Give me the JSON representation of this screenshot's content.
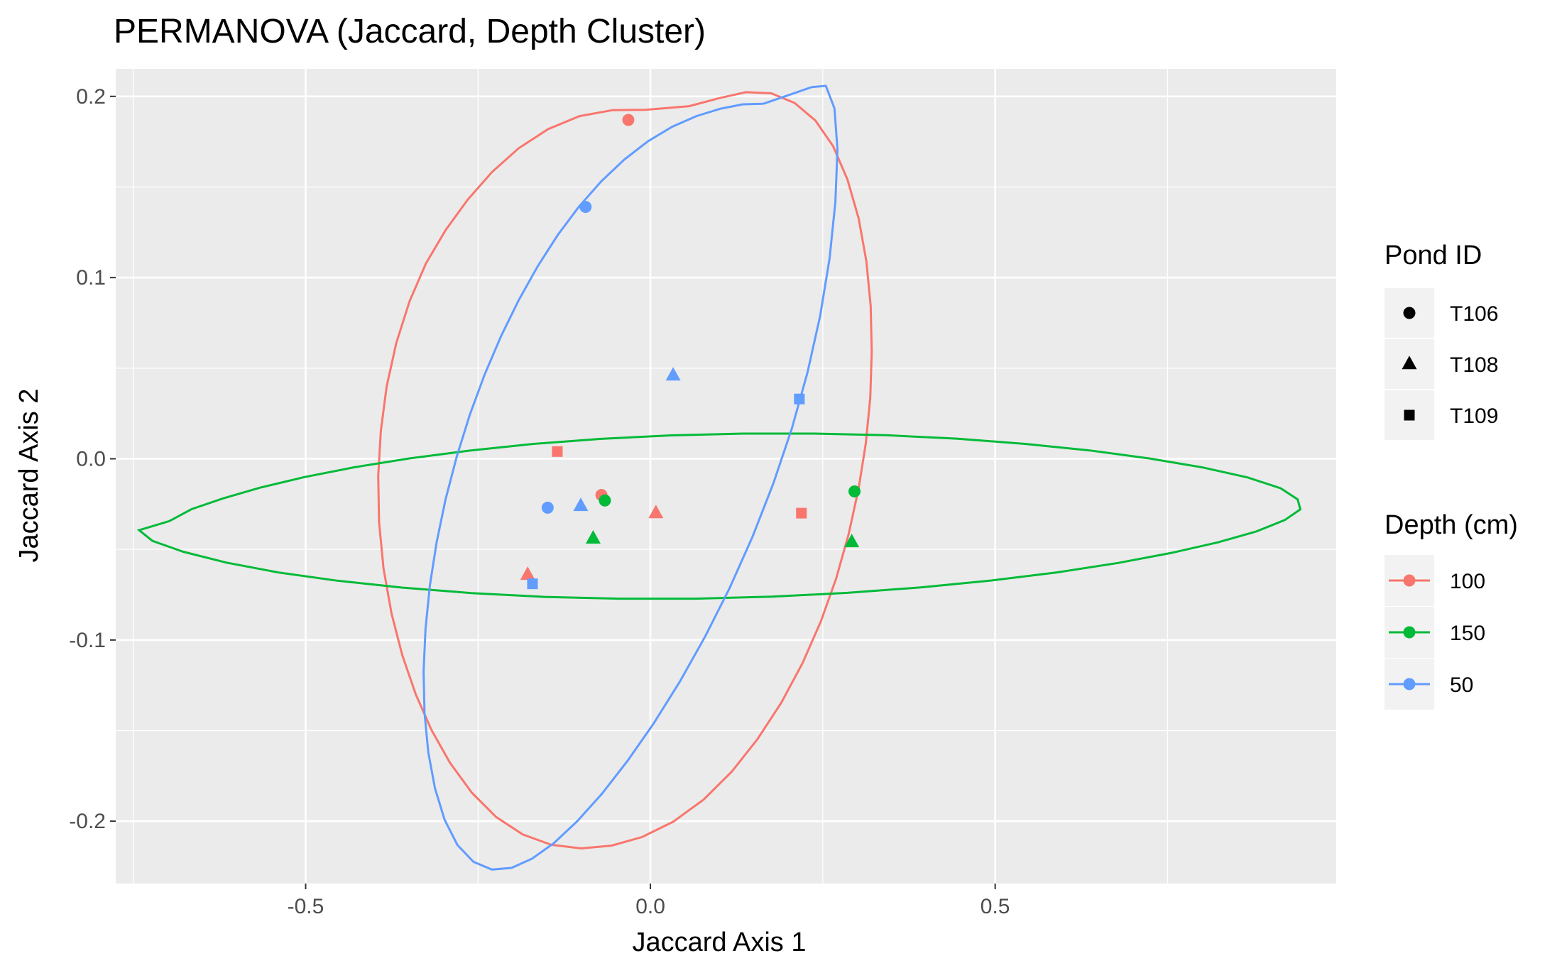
{
  "chart_data": {
    "type": "scatter",
    "title": "PERMANOVA (Jaccard, Depth Cluster)",
    "xlabel": "Jaccard Axis 1",
    "ylabel": "Jaccard Axis 2",
    "xlim": [
      -0.7754,
      0.9946
    ],
    "ylim": [
      -0.2344,
      0.2152
    ],
    "x_ticks": [
      -0.5,
      0.0,
      0.5
    ],
    "x_tick_labels": [
      "-0.5",
      "0.0",
      "0.5"
    ],
    "y_ticks": [
      -0.2,
      -0.1,
      0.0,
      0.1,
      0.2
    ],
    "y_tick_labels": [
      "-0.2",
      "-0.1",
      "0.0",
      "0.1",
      "0.2"
    ],
    "grid": true,
    "legend_placement": "right",
    "legends": {
      "shape": {
        "title": "Pond ID",
        "entries": [
          {
            "label": "T106",
            "shape": "circle"
          },
          {
            "label": "T108",
            "shape": "triangle"
          },
          {
            "label": "T109",
            "shape": "square"
          }
        ]
      },
      "color": {
        "title": "Depth (cm)",
        "entries": [
          {
            "label": "100",
            "color": "#F8766D"
          },
          {
            "label": "150",
            "color": "#00BA38"
          },
          {
            "label": "50",
            "color": "#619CFF"
          }
        ]
      }
    },
    "points": [
      {
        "x": -0.032,
        "y": 0.187,
        "depth": "100",
        "pond": "T106"
      },
      {
        "x": -0.071,
        "y": -0.02,
        "depth": "100",
        "pond": "T106"
      },
      {
        "x": 0.008,
        "y": -0.03,
        "depth": "100",
        "pond": "T108"
      },
      {
        "x": -0.178,
        "y": -0.064,
        "depth": "100",
        "pond": "T108"
      },
      {
        "x": -0.135,
        "y": 0.004,
        "depth": "100",
        "pond": "T109"
      },
      {
        "x": 0.219,
        "y": -0.03,
        "depth": "100",
        "pond": "T109"
      },
      {
        "x": -0.066,
        "y": -0.023,
        "depth": "150",
        "pond": "T106"
      },
      {
        "x": 0.296,
        "y": -0.018,
        "depth": "150",
        "pond": "T106"
      },
      {
        "x": -0.083,
        "y": -0.044,
        "depth": "150",
        "pond": "T108"
      },
      {
        "x": 0.292,
        "y": -0.046,
        "depth": "150",
        "pond": "T108"
      },
      {
        "x": -0.094,
        "y": 0.139,
        "depth": "50",
        "pond": "T106"
      },
      {
        "x": -0.149,
        "y": -0.027,
        "depth": "50",
        "pond": "T106"
      },
      {
        "x": -0.101,
        "y": -0.026,
        "depth": "50",
        "pond": "T108"
      },
      {
        "x": 0.033,
        "y": 0.046,
        "depth": "50",
        "pond": "T108"
      },
      {
        "x": -0.171,
        "y": -0.069,
        "depth": "50",
        "pond": "T109"
      },
      {
        "x": 0.216,
        "y": 0.033,
        "depth": "50",
        "pond": "T109"
      }
    ],
    "ellipses": [
      {
        "depth": "100",
        "color": "#F8766D",
        "path": [
          [
            -0.0074,
            0.1926
          ],
          [
            -0.0547,
            0.1924
          ],
          [
            -0.1027,
            0.1891
          ],
          [
            -0.1484,
            0.1819
          ],
          [
            -0.1909,
            0.1714
          ],
          [
            -0.2296,
            0.1583
          ],
          [
            -0.265,
            0.143
          ],
          [
            -0.297,
            0.1262
          ],
          [
            -0.3254,
            0.1079
          ],
          [
            -0.3491,
            0.0871
          ],
          [
            -0.3685,
            0.064
          ],
          [
            -0.3825,
            0.04
          ],
          [
            -0.3909,
            0.0154
          ],
          [
            -0.3947,
            -0.0094
          ],
          [
            -0.3935,
            -0.035
          ],
          [
            -0.387,
            -0.0606
          ],
          [
            -0.3755,
            -0.0853
          ],
          [
            -0.3598,
            -0.1084
          ],
          [
            -0.3404,
            -0.1299
          ],
          [
            -0.3177,
            -0.1495
          ],
          [
            -0.2906,
            -0.1678
          ],
          [
            -0.2589,
            -0.1843
          ],
          [
            -0.2237,
            -0.1977
          ],
          [
            -0.1853,
            -0.2073
          ],
          [
            -0.1439,
            -0.213
          ],
          [
            -0.1005,
            -0.215
          ],
          [
            -0.0564,
            -0.2135
          ],
          [
            -0.0118,
            -0.2087
          ],
          [
            0.0331,
            -0.2003
          ],
          [
            0.0771,
            -0.1881
          ],
          [
            0.1178,
            -0.1727
          ],
          [
            0.1553,
            -0.1547
          ],
          [
            0.1898,
            -0.1346
          ],
          [
            0.2206,
            -0.1128
          ],
          [
            0.2473,
            -0.0897
          ],
          [
            0.2695,
            -0.0659
          ],
          [
            0.2875,
            -0.0415
          ],
          [
            0.3019,
            -0.0165
          ],
          [
            0.3123,
            0.0084
          ],
          [
            0.3188,
            0.0335
          ],
          [
            0.321,
            0.0591
          ],
          [
            0.3194,
            0.0844
          ],
          [
            0.3132,
            0.1091
          ],
          [
            0.302,
            0.1326
          ],
          [
            0.2858,
            0.1541
          ],
          [
            0.265,
            0.1725
          ],
          [
            0.2394,
            0.1866
          ],
          [
            0.2091,
            0.1964
          ],
          [
            0.1752,
            0.2017
          ],
          [
            0.1385,
            0.2023
          ],
          [
            0.0993,
            0.199
          ],
          [
            0.0563,
            0.1946
          ],
          [
            -0.0074,
            0.1926
          ]
        ]
      },
      {
        "depth": "150",
        "color": "#00BA38",
        "path": [
          [
            -0.6977,
            -0.0344
          ],
          [
            -0.6654,
            -0.0278
          ],
          [
            -0.6201,
            -0.0219
          ],
          [
            -0.5657,
            -0.0159
          ],
          [
            -0.5019,
            -0.0101
          ],
          [
            -0.4296,
            -0.0047
          ],
          [
            -0.3496,
            0.0002
          ],
          [
            -0.2626,
            0.0045
          ],
          [
            -0.1695,
            0.0082
          ],
          [
            -0.0715,
            0.011
          ],
          [
            0.03,
            0.0129
          ],
          [
            0.1337,
            0.0139
          ],
          [
            0.238,
            0.0139
          ],
          [
            0.342,
            0.013
          ],
          [
            0.4443,
            0.0111
          ],
          [
            0.5432,
            0.0082
          ],
          [
            0.6369,
            0.0046
          ],
          [
            0.7235,
            0.0002
          ],
          [
            0.8009,
            -0.0048
          ],
          [
            0.8662,
            -0.0103
          ],
          [
            0.9142,
            -0.0163
          ],
          [
            0.9387,
            -0.0224
          ],
          [
            0.9426,
            -0.0279
          ],
          [
            0.92,
            -0.0338
          ],
          [
            0.8787,
            -0.0401
          ],
          [
            0.8233,
            -0.0461
          ],
          [
            0.7561,
            -0.0519
          ],
          [
            0.6781,
            -0.0575
          ],
          [
            0.5895,
            -0.0627
          ],
          [
            0.4934,
            -0.0672
          ],
          [
            0.3917,
            -0.071
          ],
          [
            0.2856,
            -0.074
          ],
          [
            0.1762,
            -0.0761
          ],
          [
            0.0657,
            -0.0772
          ],
          [
            -0.0448,
            -0.0772
          ],
          [
            -0.1541,
            -0.0762
          ],
          [
            -0.2597,
            -0.0741
          ],
          [
            -0.3602,
            -0.0711
          ],
          [
            -0.4539,
            -0.0673
          ],
          [
            -0.5398,
            -0.0627
          ],
          [
            -0.6149,
            -0.0573
          ],
          [
            -0.6775,
            -0.0513
          ],
          [
            -0.7222,
            -0.0453
          ],
          [
            -0.7415,
            -0.0394
          ],
          [
            -0.6977,
            -0.0344
          ]
        ]
      },
      {
        "depth": "50",
        "color": "#619CFF",
        "path": [
          [
            0.1635,
            0.1959
          ],
          [
            0.134,
            0.1956
          ],
          [
            0.1015,
            0.1932
          ],
          [
            0.0668,
            0.1891
          ],
          [
            0.0313,
            0.1832
          ],
          [
            -0.0036,
            0.1752
          ],
          [
            -0.038,
            0.1651
          ],
          [
            -0.0715,
            0.153
          ],
          [
            -0.1037,
            0.1391
          ],
          [
            -0.1345,
            0.1234
          ],
          [
            -0.1637,
            0.1061
          ],
          [
            -0.1912,
            0.0874
          ],
          [
            -0.2168,
            0.0675
          ],
          [
            -0.2405,
            0.0464
          ],
          [
            -0.262,
            0.0242
          ],
          [
            -0.2809,
            0.0012
          ],
          [
            -0.297,
            -0.0223
          ],
          [
            -0.3101,
            -0.0462
          ],
          [
            -0.3199,
            -0.0701
          ],
          [
            -0.3262,
            -0.094
          ],
          [
            -0.3289,
            -0.1174
          ],
          [
            -0.3276,
            -0.1402
          ],
          [
            -0.3221,
            -0.1619
          ],
          [
            -0.3125,
            -0.1818
          ],
          [
            -0.2985,
            -0.1992
          ],
          [
            -0.2799,
            -0.2131
          ],
          [
            -0.2567,
            -0.2224
          ],
          [
            -0.23,
            -0.2267
          ],
          [
            -0.2014,
            -0.2258
          ],
          [
            -0.1716,
            -0.2207
          ],
          [
            -0.14,
            -0.2121
          ],
          [
            -0.1061,
            -0.2
          ],
          [
            -0.0702,
            -0.1848
          ],
          [
            -0.0331,
            -0.1667
          ],
          [
            0.0047,
            -0.1461
          ],
          [
            0.0425,
            -0.1231
          ],
          [
            0.0795,
            -0.098
          ],
          [
            0.115,
            -0.0713
          ],
          [
            0.1481,
            -0.043
          ],
          [
            0.1783,
            -0.0136
          ],
          [
            0.205,
            0.0166
          ],
          [
            0.2278,
            0.0476
          ],
          [
            0.2462,
            0.079
          ],
          [
            0.2598,
            0.1105
          ],
          [
            0.2683,
            0.1417
          ],
          [
            0.2713,
            0.1709
          ],
          [
            0.2669,
            0.1934
          ],
          [
            0.2545,
            0.2058
          ],
          [
            0.2336,
            0.2051
          ],
          [
            0.2044,
            0.2012
          ],
          [
            0.1635,
            0.1959
          ]
        ]
      }
    ]
  }
}
